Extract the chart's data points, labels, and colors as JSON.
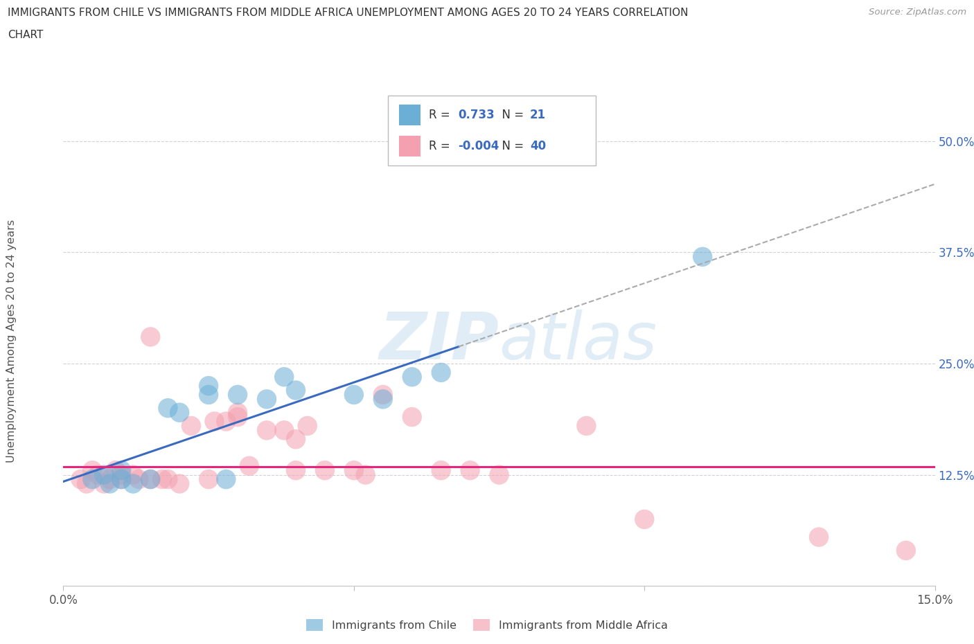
{
  "title_line1": "IMMIGRANTS FROM CHILE VS IMMIGRANTS FROM MIDDLE AFRICA UNEMPLOYMENT AMONG AGES 20 TO 24 YEARS CORRELATION",
  "title_line2": "CHART",
  "source": "Source: ZipAtlas.com",
  "ylabel": "Unemployment Among Ages 20 to 24 years",
  "xlim": [
    0.0,
    0.15
  ],
  "ylim": [
    0.0,
    0.55
  ],
  "chile_color": "#6baed6",
  "middle_africa_color": "#f4a0b0",
  "chile_line_color": "#3a6abf",
  "africa_line_color": "#e8257a",
  "dash_color": "#aaaaaa",
  "chile_R": 0.733,
  "chile_N": 21,
  "middle_africa_R": -0.004,
  "middle_africa_N": 40,
  "chile_scatter_x": [
    0.005,
    0.007,
    0.008,
    0.01,
    0.01,
    0.012,
    0.015,
    0.018,
    0.02,
    0.025,
    0.025,
    0.028,
    0.03,
    0.035,
    0.038,
    0.04,
    0.05,
    0.055,
    0.06,
    0.065,
    0.11
  ],
  "chile_scatter_y": [
    0.12,
    0.125,
    0.115,
    0.13,
    0.12,
    0.115,
    0.12,
    0.2,
    0.195,
    0.215,
    0.225,
    0.12,
    0.215,
    0.21,
    0.235,
    0.22,
    0.215,
    0.21,
    0.235,
    0.24,
    0.37
  ],
  "middle_africa_scatter_x": [
    0.003,
    0.004,
    0.005,
    0.006,
    0.007,
    0.008,
    0.009,
    0.01,
    0.01,
    0.012,
    0.013,
    0.015,
    0.015,
    0.017,
    0.018,
    0.02,
    0.022,
    0.025,
    0.026,
    0.028,
    0.03,
    0.03,
    0.032,
    0.035,
    0.038,
    0.04,
    0.04,
    0.042,
    0.045,
    0.05,
    0.052,
    0.055,
    0.06,
    0.065,
    0.07,
    0.075,
    0.09,
    0.1,
    0.13,
    0.145
  ],
  "middle_africa_scatter_y": [
    0.12,
    0.115,
    0.13,
    0.125,
    0.115,
    0.12,
    0.13,
    0.12,
    0.125,
    0.125,
    0.12,
    0.12,
    0.28,
    0.12,
    0.12,
    0.115,
    0.18,
    0.12,
    0.185,
    0.185,
    0.19,
    0.195,
    0.135,
    0.175,
    0.175,
    0.165,
    0.13,
    0.18,
    0.13,
    0.13,
    0.125,
    0.215,
    0.19,
    0.13,
    0.13,
    0.125,
    0.18,
    0.075,
    0.055,
    0.04
  ],
  "watermark_color": "#c8dff0",
  "background_color": "#ffffff",
  "grid_color": "#cccccc",
  "legend_label_chile": "Immigrants from Chile",
  "legend_label_africa": "Immigrants from Middle Africa",
  "africa_line_y": 0.134
}
